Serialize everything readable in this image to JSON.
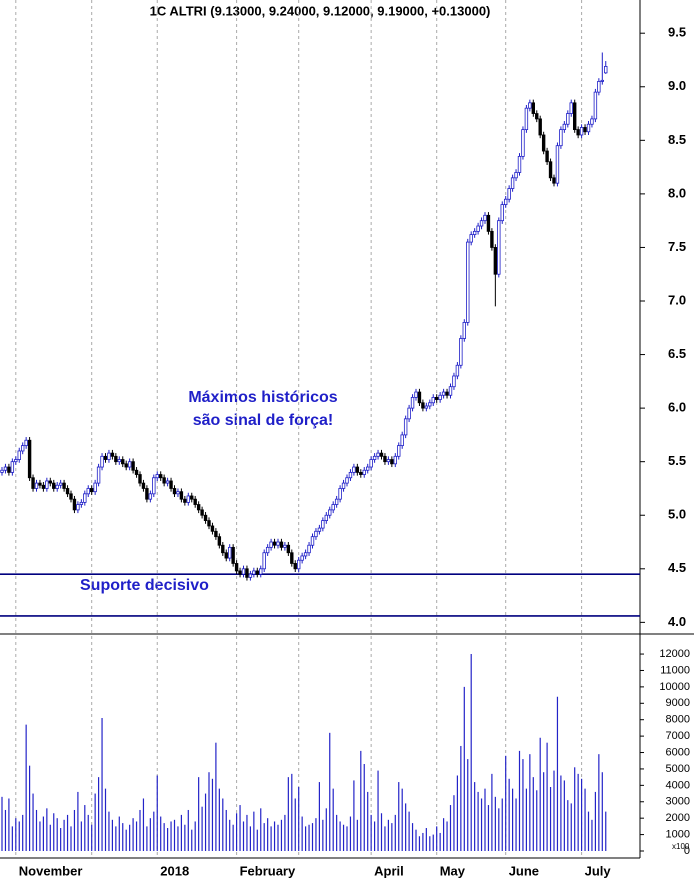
{
  "chart_data": [
    {
      "type": "candlestick",
      "title": "1C ALTRI (9.13000, 9.24000, 9.12000, 9.19000, +0.13000)",
      "annotations": [
        "Máximos históricos",
        "são sinal de força!",
        "Suporte decisivo"
      ],
      "hlines": [
        4.45,
        4.06
      ],
      "up_color": "#1f1fc8",
      "down_color": "#000000",
      "line_color": "#00007f",
      "ylim": [
        3.91,
        9.81
      ],
      "yticks": [
        {
          "value": 4,
          "label": "4.0"
        },
        4.5,
        {
          "value": 5,
          "label": "5.0"
        },
        5.5,
        {
          "value": 6,
          "label": "6.0"
        },
        6.5,
        {
          "value": 7,
          "label": "7.0"
        },
        7.5,
        {
          "value": 8,
          "label": "8.0"
        },
        8.5,
        {
          "value": 9,
          "label": "9.0"
        },
        9.5
      ],
      "open": [
        5.4,
        5.42,
        5.45,
        5.4,
        5.5,
        5.52,
        5.6,
        5.65,
        5.7,
        5.35,
        5.25,
        5.3,
        5.28,
        5.25,
        5.32,
        5.3,
        5.25,
        5.28,
        5.3,
        5.25,
        5.2,
        5.15,
        5.05,
        5.1,
        5.12,
        5.2,
        5.25,
        5.22,
        5.3,
        5.45,
        5.55,
        5.52,
        5.58,
        5.55,
        5.5,
        5.52,
        5.48,
        5.45,
        5.5,
        5.42,
        5.38,
        5.3,
        5.25,
        5.15,
        5.2,
        5.35,
        5.38,
        5.35,
        5.3,
        5.32,
        5.25,
        5.2,
        5.22,
        5.15,
        5.12,
        5.18,
        5.15,
        5.1,
        5.05,
        5.0,
        4.95,
        4.9,
        4.85,
        4.8,
        4.72,
        4.65,
        4.6,
        4.7,
        4.55,
        4.48,
        4.45,
        4.5,
        4.42,
        4.45,
        4.48,
        4.45,
        4.5,
        4.65,
        4.7,
        4.75,
        4.72,
        4.75,
        4.7,
        4.72,
        4.65,
        4.55,
        4.5,
        4.58,
        4.62,
        4.65,
        4.72,
        4.8,
        4.85,
        4.88,
        4.95,
        5.0,
        5.05,
        5.1,
        5.15,
        5.25,
        5.3,
        5.35,
        5.4,
        5.45,
        5.4,
        5.38,
        5.42,
        5.45,
        5.52,
        5.55,
        5.58,
        5.55,
        5.5,
        5.52,
        5.48,
        5.55,
        5.65,
        5.75,
        5.9,
        6.0,
        6.1,
        6.15,
        6.05,
        6.0,
        6.02,
        6.05,
        6.1,
        6.08,
        6.12,
        6.15,
        6.12,
        6.2,
        6.3,
        6.4,
        6.65,
        6.8,
        7.55,
        7.62,
        7.65,
        7.7,
        7.75,
        7.8,
        7.65,
        7.5,
        7.25,
        7.75,
        7.9,
        7.95,
        8.05,
        8.15,
        8.2,
        8.35,
        8.6,
        8.8,
        8.85,
        8.75,
        8.7,
        8.55,
        8.4,
        8.3,
        8.15,
        8.1,
        8.45,
        8.6,
        8.65,
        8.75,
        8.85,
        8.6,
        8.55,
        8.62,
        8.58,
        8.65,
        8.7,
        8.95,
        9.05,
        9.13
      ],
      "high": [
        5.45,
        5.48,
        5.48,
        5.53,
        5.55,
        5.63,
        5.68,
        5.73,
        5.73,
        5.38,
        5.33,
        5.33,
        5.31,
        5.35,
        5.35,
        5.33,
        5.31,
        5.33,
        5.33,
        5.28,
        5.23,
        5.18,
        5.13,
        5.15,
        5.23,
        5.28,
        5.28,
        5.33,
        5.48,
        5.58,
        5.58,
        5.61,
        5.61,
        5.58,
        5.55,
        5.55,
        5.51,
        5.53,
        5.53,
        5.45,
        5.41,
        5.33,
        5.28,
        5.23,
        5.38,
        5.41,
        5.41,
        5.38,
        5.35,
        5.35,
        5.28,
        5.25,
        5.25,
        5.18,
        5.21,
        5.21,
        5.18,
        5.13,
        5.08,
        5.03,
        4.98,
        4.93,
        4.88,
        4.83,
        4.75,
        4.68,
        4.73,
        4.73,
        4.58,
        4.51,
        4.53,
        4.53,
        4.48,
        4.51,
        4.51,
        4.53,
        4.68,
        4.73,
        4.78,
        4.78,
        4.78,
        4.78,
        4.75,
        4.75,
        4.68,
        4.58,
        4.61,
        4.65,
        4.68,
        4.75,
        4.83,
        4.88,
        4.91,
        4.98,
        5.03,
        5.08,
        5.13,
        5.18,
        5.28,
        5.33,
        5.38,
        5.43,
        5.48,
        5.48,
        5.43,
        5.45,
        5.48,
        5.55,
        5.58,
        5.61,
        5.61,
        5.58,
        5.55,
        5.55,
        5.58,
        5.68,
        5.78,
        5.93,
        6.03,
        6.13,
        6.18,
        6.18,
        6.08,
        6.05,
        6.08,
        6.13,
        6.13,
        6.15,
        6.18,
        6.18,
        6.23,
        6.33,
        6.43,
        6.68,
        6.83,
        7.58,
        7.65,
        7.68,
        7.73,
        7.78,
        7.83,
        7.83,
        7.68,
        7.53,
        7.78,
        7.93,
        7.98,
        8.08,
        8.18,
        8.23,
        8.38,
        8.63,
        8.83,
        8.88,
        8.88,
        8.78,
        8.73,
        8.58,
        8.43,
        8.33,
        8.18,
        8.48,
        8.63,
        8.68,
        8.78,
        8.88,
        8.88,
        8.63,
        8.65,
        8.65,
        8.68,
        8.73,
        8.98,
        9.08,
        9.32,
        9.24
      ],
      "low": [
        5.37,
        5.39,
        5.37,
        5.37,
        5.47,
        5.49,
        5.57,
        5.62,
        5.32,
        5.22,
        5.22,
        5.25,
        5.22,
        5.22,
        5.27,
        5.22,
        5.22,
        5.25,
        5.22,
        5.17,
        5.12,
        5.02,
        5.02,
        5.07,
        5.09,
        5.17,
        5.19,
        5.19,
        5.27,
        5.42,
        5.49,
        5.49,
        5.52,
        5.47,
        5.47,
        5.45,
        5.42,
        5.42,
        5.39,
        5.35,
        5.27,
        5.22,
        5.12,
        5.12,
        5.17,
        5.32,
        5.32,
        5.27,
        5.27,
        5.22,
        5.17,
        5.17,
        5.12,
        5.09,
        5.09,
        5.12,
        5.07,
        5.02,
        4.97,
        4.92,
        4.87,
        4.82,
        4.77,
        4.69,
        4.62,
        4.57,
        4.57,
        4.52,
        4.45,
        4.42,
        4.42,
        4.39,
        4.39,
        4.42,
        4.42,
        4.42,
        4.47,
        4.62,
        4.67,
        4.69,
        4.69,
        4.67,
        4.67,
        4.62,
        4.52,
        4.47,
        4.47,
        4.55,
        4.59,
        4.62,
        4.69,
        4.77,
        4.82,
        4.85,
        4.92,
        4.97,
        5.02,
        5.07,
        5.12,
        5.22,
        5.27,
        5.32,
        5.37,
        5.37,
        5.35,
        5.35,
        5.39,
        5.42,
        5.49,
        5.52,
        5.52,
        5.47,
        5.47,
        5.45,
        5.45,
        5.52,
        5.62,
        5.72,
        5.87,
        5.97,
        6.07,
        6.02,
        5.97,
        5.97,
        5.99,
        6.02,
        6.05,
        6.05,
        6.09,
        6.09,
        6.09,
        6.17,
        6.27,
        6.37,
        6.62,
        6.77,
        7.52,
        7.59,
        7.62,
        7.67,
        7.72,
        7.62,
        7.47,
        6.95,
        7.22,
        7.72,
        7.87,
        7.92,
        8.02,
        8.12,
        8.17,
        8.32,
        8.57,
        8.77,
        8.72,
        8.67,
        8.52,
        8.37,
        8.27,
        8.12,
        8.07,
        8.07,
        8.42,
        8.57,
        8.62,
        8.72,
        8.57,
        8.52,
        8.52,
        8.55,
        8.55,
        8.62,
        8.67,
        8.92,
        9.02,
        9.12
      ],
      "close": [
        5.42,
        5.45,
        5.4,
        5.5,
        5.52,
        5.6,
        5.65,
        5.7,
        5.35,
        5.25,
        5.3,
        5.28,
        5.25,
        5.32,
        5.3,
        5.25,
        5.28,
        5.3,
        5.25,
        5.2,
        5.15,
        5.05,
        5.1,
        5.12,
        5.2,
        5.25,
        5.22,
        5.3,
        5.45,
        5.55,
        5.52,
        5.58,
        5.55,
        5.5,
        5.52,
        5.48,
        5.45,
        5.5,
        5.42,
        5.38,
        5.3,
        5.25,
        5.15,
        5.2,
        5.35,
        5.38,
        5.35,
        5.3,
        5.32,
        5.25,
        5.2,
        5.22,
        5.15,
        5.12,
        5.18,
        5.15,
        5.1,
        5.05,
        5.0,
        4.95,
        4.9,
        4.85,
        4.8,
        4.72,
        4.65,
        4.6,
        4.7,
        4.55,
        4.48,
        4.45,
        4.5,
        4.42,
        4.45,
        4.48,
        4.45,
        4.5,
        4.65,
        4.7,
        4.75,
        4.72,
        4.75,
        4.7,
        4.72,
        4.65,
        4.55,
        4.5,
        4.58,
        4.62,
        4.65,
        4.72,
        4.8,
        4.85,
        4.88,
        4.95,
        5.0,
        5.05,
        5.1,
        5.15,
        5.25,
        5.3,
        5.35,
        5.4,
        5.45,
        5.4,
        5.38,
        5.42,
        5.45,
        5.52,
        5.55,
        5.58,
        5.55,
        5.5,
        5.52,
        5.48,
        5.55,
        5.65,
        5.75,
        5.9,
        6.0,
        6.1,
        6.15,
        6.05,
        6.0,
        6.02,
        6.05,
        6.1,
        6.08,
        6.12,
        6.15,
        6.12,
        6.2,
        6.3,
        6.4,
        6.65,
        6.8,
        7.55,
        7.62,
        7.65,
        7.7,
        7.75,
        7.8,
        7.65,
        7.5,
        7.25,
        7.75,
        7.9,
        7.95,
        8.05,
        8.15,
        8.2,
        8.35,
        8.6,
        8.8,
        8.85,
        8.75,
        8.7,
        8.55,
        8.4,
        8.3,
        8.15,
        8.1,
        8.45,
        8.6,
        8.65,
        8.75,
        8.85,
        8.6,
        8.55,
        8.62,
        8.58,
        8.65,
        8.7,
        8.95,
        9.05,
        9.06,
        9.19
      ]
    },
    {
      "type": "bar",
      "color": "#2323c8",
      "unit_label": "x100",
      "ylim": [
        0,
        13100
      ],
      "yticks": [
        0,
        1000,
        2000,
        3000,
        4000,
        5000,
        6000,
        7000,
        8000,
        9000,
        10000,
        11000,
        12000
      ],
      "values": [
        3300,
        2500,
        3200,
        1500,
        2000,
        1800,
        2200,
        7700,
        5200,
        3500,
        2500,
        1800,
        2100,
        2600,
        1600,
        2300,
        2000,
        1400,
        1900,
        2200,
        1500,
        2500,
        3600,
        1800,
        2800,
        2200,
        1600,
        3500,
        4500,
        8100,
        3800,
        2400,
        1900,
        1500,
        2100,
        1700,
        1300,
        1600,
        2000,
        1800,
        2500,
        3200,
        1500,
        2000,
        2400,
        4600,
        2100,
        1700,
        1400,
        1800,
        1900,
        1500,
        2200,
        1600,
        2500,
        1300,
        1800,
        4500,
        2700,
        3500,
        4800,
        4400,
        6600,
        3800,
        3200,
        2500,
        1900,
        1600,
        2300,
        2800,
        1800,
        2200,
        1500,
        2400,
        1300,
        2600,
        1700,
        2000,
        1500,
        1800,
        1600,
        1900,
        2200,
        4500,
        4700,
        3200,
        3900,
        2100,
        1500,
        1600,
        1700,
        2000,
        4200,
        1900,
        2600,
        7200,
        3800,
        2200,
        1800,
        1600,
        1500,
        2100,
        4300,
        1900,
        6100,
        5300,
        3600,
        2200,
        1800,
        4900,
        2300,
        1500,
        1900,
        1700,
        2200,
        4200,
        3800,
        2900,
        2400,
        1700,
        1300,
        900,
        1100,
        1400,
        900,
        1000,
        1500,
        1100,
        2000,
        1800,
        2800,
        3400,
        4600,
        6400,
        10000,
        5600,
        12000,
        4200,
        3600,
        3200,
        3800,
        2800,
        4700,
        3300,
        2600,
        3200,
        5800,
        4400,
        3800,
        3200,
        6100,
        5600,
        3800,
        5900,
        4500,
        3700,
        6900,
        4800,
        6600,
        3900,
        4900,
        9400,
        4600,
        4300,
        3100,
        2900,
        5100,
        4700,
        4400,
        3800,
        2400,
        1900,
        3600,
        5900,
        4800,
        2400
      ],
      "xticks": [
        {
          "value": 4,
          "label": "November"
        },
        {
          "value": 26,
          "label": null
        },
        {
          "value": 45,
          "label": "2018"
        },
        {
          "value": 68,
          "label": "February"
        },
        {
          "value": 86,
          "label": null
        },
        {
          "value": 107,
          "label": "April"
        },
        {
          "value": 126,
          "label": "May"
        },
        {
          "value": 146,
          "label": "June"
        },
        {
          "value": 168,
          "label": "July"
        }
      ]
    }
  ]
}
